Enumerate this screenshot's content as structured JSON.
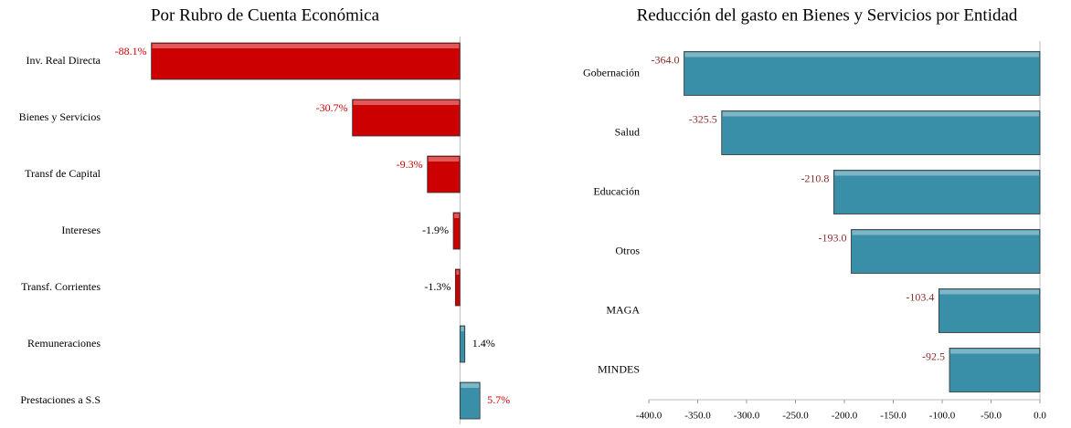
{
  "chart_data": [
    {
      "type": "hbar",
      "title": "Por Rubro de Cuenta Económica",
      "categories": [
        "Inv. Real Directa",
        "Bienes y Servicios",
        "Transf de Capital",
        "Intereses",
        "Transf. Corrientes",
        "Remuneraciones",
        "Prestaciones a S.S"
      ],
      "values": [
        -88.1,
        -30.7,
        -9.3,
        -1.9,
        -1.3,
        1.4,
        5.7
      ],
      "value_labels": [
        "-88.1%",
        "-30.7%",
        "-9.3%",
        "-1.9%",
        "-1.3%",
        "1.4%",
        "5.7%"
      ],
      "negative_color": "#cc0000",
      "positive_color": "#3a8fa8",
      "xlim": [
        -100,
        20
      ]
    },
    {
      "type": "hbar",
      "title": "Reducción del gasto en Bienes y Servicios por Entidad",
      "categories": [
        "Gobernación",
        "Salud",
        "Educación",
        "Otros",
        "MAGA",
        "MINDES"
      ],
      "values": [
        -364.0,
        -325.5,
        -210.8,
        -193.0,
        -103.4,
        -92.5
      ],
      "value_labels": [
        "-364.0",
        "-325.5",
        "-210.8",
        "-193.0",
        "-103.4",
        "-92.5"
      ],
      "negative_color": "#3a8fa8",
      "positive_color": "#3a8fa8",
      "xlim": [
        -400,
        0
      ],
      "xticks": [
        {
          "value": -400,
          "label": "-400.0"
        },
        {
          "value": -350,
          "label": "-350.0"
        },
        {
          "value": -300,
          "label": "-300.0"
        },
        {
          "value": -250,
          "label": "-250.0"
        },
        {
          "value": -200,
          "label": "-200.0"
        },
        {
          "value": -150,
          "label": "-150.0"
        },
        {
          "value": -100,
          "label": "-100.0"
        },
        {
          "value": -50,
          "label": "-50.0"
        },
        {
          "value": 0,
          "label": "0.0"
        }
      ]
    }
  ]
}
